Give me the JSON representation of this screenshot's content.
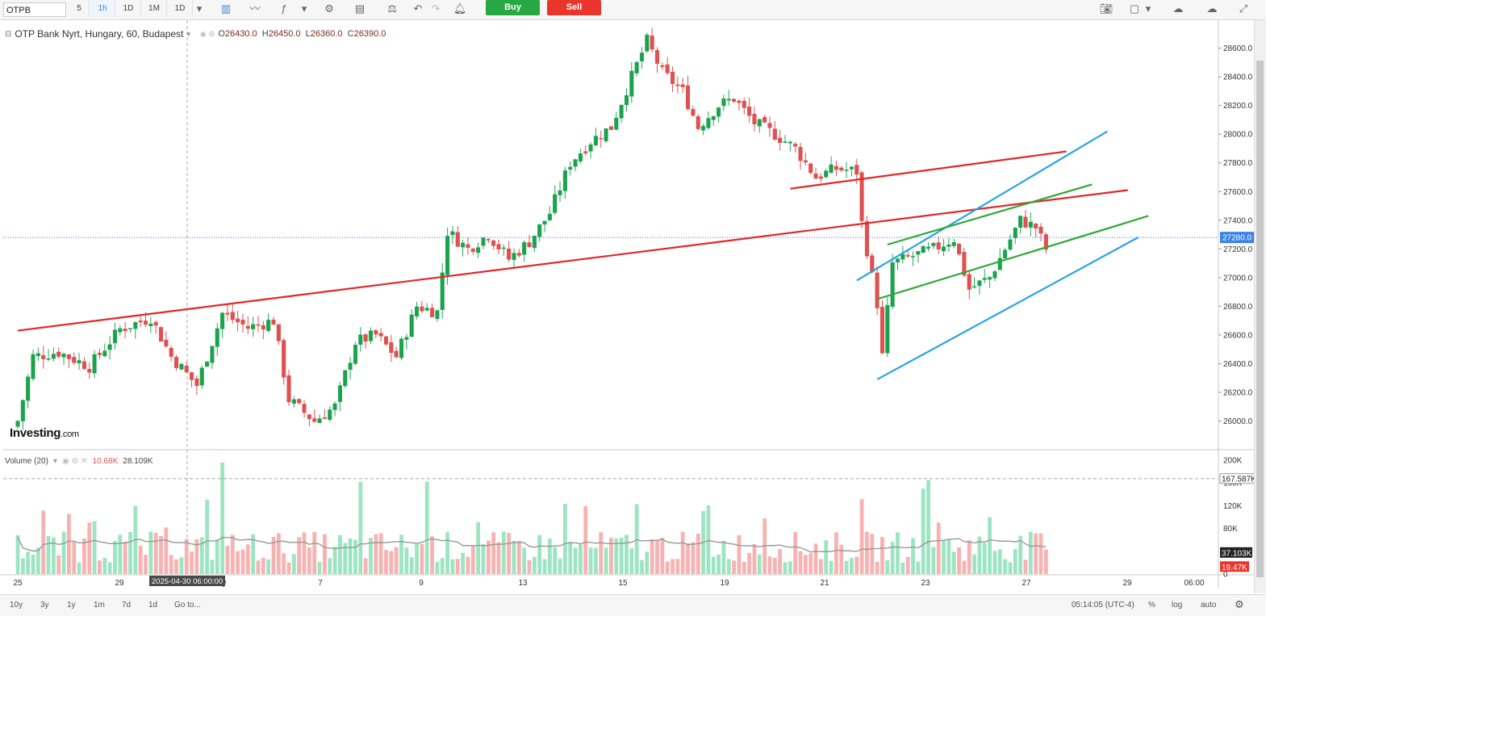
{
  "toolbar": {
    "symbol": "OTPB",
    "intervals": [
      "5",
      "1h",
      "1D",
      "1M",
      "1D"
    ],
    "active_interval": "1h",
    "buy_label": "Buy",
    "sell_label": "Sell"
  },
  "legend": {
    "title": "OTP Bank Nyrt, Hungary, 60, Budapest",
    "open_label": "O",
    "open": "26430.0",
    "high_label": "H",
    "high": "26450.0",
    "low_label": "L",
    "low": "26360.0",
    "close_label": "C",
    "close": "26390.0"
  },
  "volume_legend": {
    "title": "Volume (20)",
    "value": "10.68K",
    "ma_value": "28.109K"
  },
  "logo": {
    "name": "Investing",
    "suffix": ".com"
  },
  "bottom": {
    "ranges": [
      "10y",
      "3y",
      "1y",
      "1m",
      "7d",
      "1d"
    ],
    "goto": "Go to...",
    "time": "05:14:05 (UTC-4)",
    "percent": "%",
    "log": "log",
    "auto": "auto"
  },
  "colors": {
    "up": "#26a65b",
    "up_fill": "#1aa34a",
    "down": "#d9534f",
    "down_fill": "#e05050",
    "vol_up": "#9de5c2",
    "vol_down": "#f7b2b2",
    "trend_red": "#e3262a",
    "trend_green": "#2fa83a",
    "trend_blue": "#2aa3e6"
  },
  "chart_data": {
    "type": "candlestick",
    "title": "OTP Bank Nyrt, Hungary, 60, Budapest",
    "y_ticks": [
      "26000.0",
      "26200.0",
      "26400.0",
      "26600.0",
      "26800.0",
      "27000.0",
      "27200.0",
      "27400.0",
      "27600.0",
      "27800.0",
      "28000.0",
      "28200.0",
      "28400.0",
      "28600.0"
    ],
    "ylim": [
      25800,
      28750
    ],
    "x_ticks": [
      "25",
      "29",
      "y",
      "7",
      "9",
      "13",
      "15",
      "19",
      "21",
      "23",
      "27",
      "29",
      "06:00"
    ],
    "crosshair_label": "2025-04-30 06:00:00",
    "last_price_label": "27280.0",
    "last_price": 27280,
    "volume_ticks": [
      "0",
      "40K",
      "80K",
      "120K",
      "160K",
      "200K"
    ],
    "volume_ylim": [
      0,
      200000
    ],
    "volume_dashed_label": "167.587K",
    "volume_ma_label": "37.103K",
    "volume_last_label": "19.47K",
    "anchors": [
      {
        "i": 0,
        "c": 26000
      },
      {
        "i": 3,
        "c": 26450
      },
      {
        "i": 8,
        "c": 26480
      },
      {
        "i": 14,
        "c": 26380
      },
      {
        "i": 20,
        "c": 26640
      },
      {
        "i": 26,
        "c": 26720
      },
      {
        "i": 30,
        "c": 26450
      },
      {
        "i": 35,
        "c": 26250
      },
      {
        "i": 40,
        "c": 26750
      },
      {
        "i": 45,
        "c": 26650
      },
      {
        "i": 50,
        "c": 26700
      },
      {
        "i": 53,
        "c": 26150
      },
      {
        "i": 58,
        "c": 26000
      },
      {
        "i": 62,
        "c": 26100
      },
      {
        "i": 66,
        "c": 26550
      },
      {
        "i": 70,
        "c": 26600
      },
      {
        "i": 74,
        "c": 26450
      },
      {
        "i": 78,
        "c": 26800
      },
      {
        "i": 82,
        "c": 26760
      },
      {
        "i": 84,
        "c": 27320
      },
      {
        "i": 88,
        "c": 27200
      },
      {
        "i": 92,
        "c": 27300
      },
      {
        "i": 96,
        "c": 27130
      },
      {
        "i": 100,
        "c": 27250
      },
      {
        "i": 104,
        "c": 27450
      },
      {
        "i": 108,
        "c": 27800
      },
      {
        "i": 112,
        "c": 27950
      },
      {
        "i": 116,
        "c": 28050
      },
      {
        "i": 120,
        "c": 28400
      },
      {
        "i": 123,
        "c": 28650
      },
      {
        "i": 126,
        "c": 28430
      },
      {
        "i": 130,
        "c": 28300
      },
      {
        "i": 133,
        "c": 28050
      },
      {
        "i": 137,
        "c": 28200
      },
      {
        "i": 140,
        "c": 28250
      },
      {
        "i": 144,
        "c": 28080
      },
      {
        "i": 148,
        "c": 28000
      },
      {
        "i": 152,
        "c": 27900
      },
      {
        "i": 156,
        "c": 27700
      },
      {
        "i": 160,
        "c": 27760
      },
      {
        "i": 164,
        "c": 27740
      },
      {
        "i": 165,
        "c": 27380
      },
      {
        "i": 168,
        "c": 26820
      },
      {
        "i": 169,
        "c": 26450
      },
      {
        "i": 171,
        "c": 27100
      },
      {
        "i": 175,
        "c": 27150
      },
      {
        "i": 179,
        "c": 27200
      },
      {
        "i": 183,
        "c": 27270
      },
      {
        "i": 186,
        "c": 26920
      },
      {
        "i": 190,
        "c": 27000
      },
      {
        "i": 193,
        "c": 27200
      },
      {
        "i": 196,
        "c": 27400
      },
      {
        "i": 199,
        "c": 27350
      },
      {
        "i": 201,
        "c": 27200
      }
    ],
    "trendlines": [
      {
        "color": "red",
        "from": [
          0,
          26630
        ],
        "to": [
          217,
          27610
        ]
      },
      {
        "color": "red",
        "from": [
          151,
          27620
        ],
        "to": [
          205,
          27880
        ]
      },
      {
        "color": "blue",
        "from": [
          164,
          26980
        ],
        "to": [
          213,
          28020
        ]
      },
      {
        "color": "blue",
        "from": [
          168,
          26290
        ],
        "to": [
          219,
          27280
        ]
      },
      {
        "color": "green",
        "from": [
          170,
          27230
        ],
        "to": [
          210,
          27650
        ]
      },
      {
        "color": "green",
        "from": [
          168,
          26850
        ],
        "to": [
          221,
          27430
        ]
      }
    ]
  }
}
